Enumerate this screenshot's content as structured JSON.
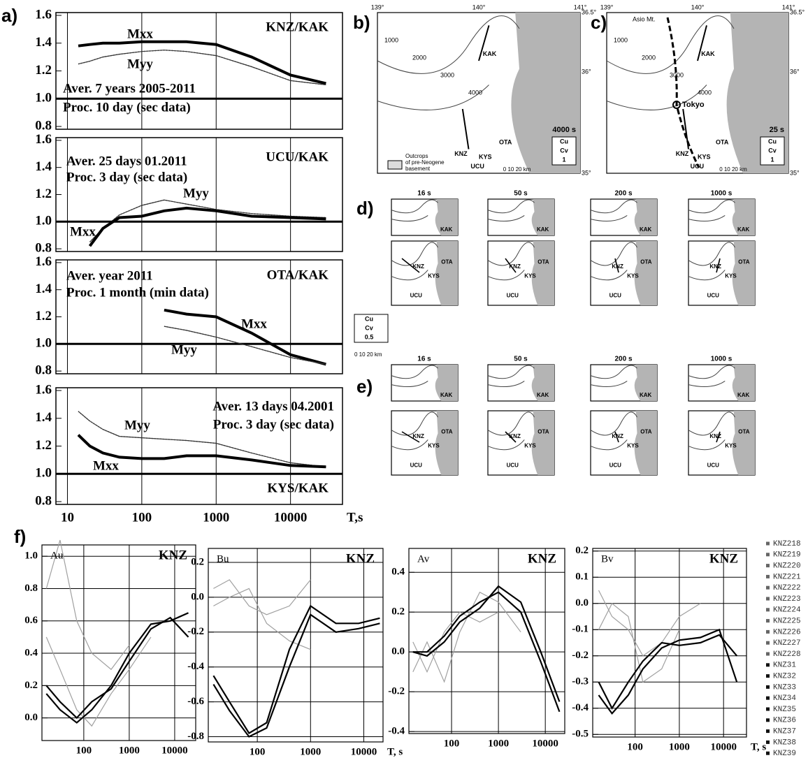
{
  "panel_labels": [
    "a)",
    "b)",
    "c)",
    "d)",
    "e)",
    "f)"
  ],
  "chart_data": [
    {
      "type": "line",
      "title": "KNZ/KAK",
      "annotations": [
        "Aver. 7 years 2005-2011",
        "Proc. 10 day (sec data)"
      ],
      "x": [
        14,
        20,
        30,
        50,
        100,
        200,
        400,
        1000,
        3000,
        10000,
        30000
      ],
      "xlim": [
        7,
        50000
      ],
      "log_x": true,
      "xticks": [
        10,
        100,
        1000,
        10000
      ],
      "xtick_labels": false,
      "ylim": [
        0.78,
        1.62
      ],
      "yticks": [
        1.6,
        1.4,
        1.2,
        {
          "value": 1,
          "label": "1.0"
        },
        0.8
      ],
      "hline": 1,
      "grid": "x",
      "series": [
        {
          "name": "Mxx",
          "color": "#000000",
          "values": [
            1.38,
            1.39,
            1.4,
            1.4,
            1.41,
            1.41,
            1.41,
            1.39,
            1.3,
            1.17,
            1.11
          ]
        },
        {
          "name": "Myy",
          "color": "#333333",
          "values": [
            1.25,
            1.27,
            1.3,
            1.32,
            1.34,
            1.35,
            1.34,
            1.31,
            1.23,
            1.13,
            1.1
          ]
        }
      ]
    },
    {
      "type": "line",
      "title": "UCU/KAK",
      "annotations": [
        "Aver. 25 days 01.2011",
        "Proc. 3 day (sec data)"
      ],
      "x": [
        14,
        20,
        30,
        50,
        100,
        200,
        400,
        1000,
        3000,
        10000,
        30000
      ],
      "xlim": [
        7,
        50000
      ],
      "log_x": true,
      "xticks": [
        10,
        100,
        1000,
        10000
      ],
      "xtick_labels": false,
      "ylim": [
        0.78,
        1.62
      ],
      "yticks": [
        1.6,
        1.4,
        1.2,
        {
          "value": 1,
          "label": "1.0"
        },
        0.8
      ],
      "hline": 1,
      "grid": "x",
      "series": [
        {
          "name": "Myy",
          "color": "#333333",
          "values": [
            null,
            0.85,
            0.95,
            1.05,
            1.12,
            1.16,
            1.13,
            1.09,
            1.06,
            1.04,
            1.03
          ]
        },
        {
          "name": "Mxx",
          "color": "#000000",
          "values": [
            null,
            0.82,
            0.95,
            1.03,
            1.04,
            1.08,
            1.1,
            1.08,
            1.04,
            1.03,
            1.02
          ]
        }
      ]
    },
    {
      "type": "line",
      "title": "OTA/KAK",
      "annotations": [
        "Aver. year 2011",
        "Proc. 1 month (min data)"
      ],
      "x": [
        14,
        20,
        30,
        50,
        100,
        200,
        400,
        1000,
        3000,
        10000,
        30000
      ],
      "xlim": [
        7,
        50000
      ],
      "log_x": true,
      "xticks": [
        10,
        100,
        1000,
        10000
      ],
      "xtick_labels": false,
      "ylim": [
        0.78,
        1.62
      ],
      "yticks": [
        1.6,
        1.4,
        1.2,
        {
          "value": 1,
          "label": "1.0"
        },
        0.8
      ],
      "hline": 1,
      "grid": "x",
      "series": [
        {
          "name": "Mxx",
          "color": "#000000",
          "values": [
            null,
            null,
            null,
            null,
            null,
            1.25,
            1.22,
            1.2,
            1.08,
            0.92,
            0.85
          ]
        },
        {
          "name": "Myy",
          "color": "#333333",
          "values": [
            null,
            null,
            null,
            null,
            null,
            1.13,
            1.1,
            1.05,
            0.98,
            0.9,
            0.85
          ]
        }
      ]
    },
    {
      "type": "line",
      "title": "KYS/KAK",
      "annotations": [
        "Aver. 13 days 04.2001",
        "Proc. 3 day (sec data)"
      ],
      "xlabel": "T,s",
      "x": [
        14,
        20,
        30,
        50,
        100,
        200,
        400,
        1000,
        3000,
        10000,
        30000
      ],
      "xlim": [
        7,
        50000
      ],
      "log_x": true,
      "xticks": [
        10,
        100,
        1000,
        10000
      ],
      "xtick_labels": true,
      "ylim": [
        0.78,
        1.62
      ],
      "yticks": [
        1.6,
        1.4,
        1.2,
        {
          "value": 1,
          "label": "1.0"
        },
        0.8
      ],
      "hline": 1,
      "grid": "x",
      "series": [
        {
          "name": "Myy",
          "color": "#333333",
          "values": [
            1.45,
            1.38,
            1.32,
            1.27,
            1.26,
            1.25,
            1.24,
            1.22,
            1.15,
            1.08,
            1.05
          ]
        },
        {
          "name": "Mxx",
          "color": "#000000",
          "values": [
            1.28,
            1.2,
            1.15,
            1.12,
            1.11,
            1.11,
            1.13,
            1.13,
            1.1,
            1.06,
            1.05
          ]
        }
      ]
    },
    {
      "type": "line",
      "title": "Au",
      "station": "KNZ",
      "x": [
        15,
        30,
        70,
        150,
        400,
        1000,
        3000,
        8000,
        20000
      ],
      "xlim": [
        12,
        29000
      ],
      "log_x": true,
      "xticks": [
        100,
        1000,
        10000
      ],
      "xtick_labels": true,
      "ylim": [
        -0.14,
        1.07
      ],
      "yticks": [
        {
          "value": 0,
          "label": "0.0"
        },
        0.2,
        0.4,
        0.6,
        0.8,
        {
          "value": 1,
          "label": "1.0"
        }
      ],
      "grid": "both",
      "series": [
        {
          "color": "#a0a0a0",
          "values": [
            0.8,
            1.1,
            0.6,
            0.4,
            0.3,
            0.45,
            null,
            null,
            null
          ]
        },
        {
          "color": "#a0a0a0",
          "values": [
            0.5,
            0.3,
            0.05,
            -0.05,
            0.15,
            0.3,
            0.5,
            null,
            null
          ]
        },
        {
          "color": "#000000",
          "values": [
            0.2,
            0.1,
            0.0,
            0.1,
            0.18,
            0.35,
            0.55,
            0.62,
            0.5
          ]
        },
        {
          "color": "#000000",
          "values": [
            0.15,
            0.05,
            -0.03,
            0.05,
            0.2,
            0.4,
            0.58,
            0.6,
            0.65
          ]
        }
      ]
    },
    {
      "type": "line",
      "title": "Bu",
      "station": "KNZ",
      "xlabel": "T, s",
      "x": [
        15,
        30,
        70,
        150,
        400,
        1000,
        3000,
        8000,
        20000
      ],
      "xlim": [
        12,
        23000
      ],
      "log_x": true,
      "xticks": [
        100,
        1000,
        10000
      ],
      "xtick_labels": true,
      "ylim": [
        -0.83,
        0.28
      ],
      "yticks": [
        0.2,
        {
          "value": 0,
          "label": "0.0"
        },
        -0.2,
        -0.4,
        -0.6,
        -0.8
      ],
      "grid": "both",
      "series": [
        {
          "color": "#a0a0a0",
          "values": [
            0.05,
            0.1,
            -0.05,
            -0.1,
            -0.05,
            0.1,
            null,
            null,
            null
          ]
        },
        {
          "color": "#a0a0a0",
          "values": [
            -0.05,
            0.0,
            0.05,
            -0.15,
            -0.25,
            -0.3,
            null,
            null,
            null
          ]
        },
        {
          "color": "#000000",
          "values": [
            -0.45,
            -0.6,
            -0.78,
            -0.72,
            -0.3,
            -0.05,
            -0.15,
            -0.15,
            -0.12
          ]
        },
        {
          "color": "#000000",
          "values": [
            -0.5,
            -0.65,
            -0.8,
            -0.75,
            -0.4,
            -0.1,
            -0.2,
            -0.18,
            -0.15
          ]
        }
      ]
    },
    {
      "type": "line",
      "title": "Av",
      "station": "KNZ",
      "x": [
        15,
        30,
        70,
        150,
        400,
        1000,
        3000,
        8000,
        20000
      ],
      "xlim": [
        12.3,
        26000
      ],
      "log_x": true,
      "xticks": [
        100,
        1000,
        10000
      ],
      "xtick_labels": true,
      "ylim": [
        -0.41,
        0.52
      ],
      "yticks": [
        0.4,
        0.2,
        {
          "value": 0,
          "label": "0.0"
        },
        -0.2,
        -0.4
      ],
      "grid": "both",
      "series": [
        {
          "color": "#a0a0a0",
          "values": [
            -0.1,
            0.05,
            -0.15,
            0.1,
            0.3,
            0.25,
            0.1,
            null,
            null
          ]
        },
        {
          "color": "#a0a0a0",
          "values": [
            0.05,
            -0.1,
            0.1,
            0.2,
            0.15,
            0.2,
            null,
            null,
            null
          ]
        },
        {
          "color": "#000000",
          "values": [
            0.0,
            -0.02,
            0.05,
            0.15,
            0.22,
            0.33,
            0.25,
            0.0,
            -0.25
          ]
        },
        {
          "color": "#000000",
          "values": [
            0.0,
            0.0,
            0.08,
            0.18,
            0.25,
            0.3,
            0.2,
            -0.05,
            -0.3
          ]
        }
      ]
    },
    {
      "type": "line",
      "title": "Bv",
      "station": "KNZ",
      "xlabel": "T, s",
      "x": [
        15,
        30,
        70,
        150,
        400,
        1000,
        3000,
        8000,
        20000
      ],
      "xlim": [
        11,
        33000
      ],
      "log_x": true,
      "xticks": [
        100,
        1000,
        10000
      ],
      "xtick_labels": true,
      "ylim": [
        -0.51,
        0.21
      ],
      "yticks": [
        0.2,
        0.1,
        {
          "value": 0,
          "label": "0.0"
        },
        -0.1,
        -0.2,
        -0.3,
        -0.4,
        -0.5
      ],
      "grid": "both",
      "series": [
        {
          "color": "#a0a0a0",
          "values": [
            0.05,
            -0.05,
            -0.1,
            -0.2,
            -0.15,
            -0.05,
            0.0,
            null,
            null
          ]
        },
        {
          "color": "#a0a0a0",
          "values": [
            -0.1,
            0.0,
            -0.05,
            -0.3,
            -0.25,
            -0.1,
            null,
            null,
            null
          ]
        },
        {
          "color": "#000000",
          "values": [
            -0.35,
            -0.42,
            -0.35,
            -0.25,
            -0.17,
            -0.14,
            -0.13,
            -0.1,
            -0.3
          ]
        },
        {
          "color": "#000000",
          "values": [
            -0.3,
            -0.4,
            -0.3,
            -0.22,
            -0.15,
            -0.16,
            -0.15,
            -0.12,
            -0.2
          ]
        }
      ]
    }
  ],
  "f_legend": [
    "KNZ218",
    "KNZ219",
    "KNZ220",
    "KNZ221",
    "KNZ222",
    "KNZ223",
    "KNZ224",
    "KNZ225",
    "KNZ226",
    "KNZ227",
    "KNZ228",
    "KNZ31",
    "KNZ32",
    "KNZ33",
    "KNZ34",
    "KNZ35",
    "KNZ36",
    "KNZ37",
    "KNZ38",
    "KNZ39"
  ],
  "maps": {
    "lon": [
      "139°",
      "140°",
      "141°"
    ],
    "lat": [
      "36.5°",
      "36°",
      "35°"
    ],
    "stations": [
      "KAK",
      "KNZ",
      "OTA",
      "KYS",
      "UCU"
    ],
    "contours": [
      "1000",
      "2000",
      "3000",
      "4000"
    ],
    "b": {
      "period": "4000 s",
      "arrow_legend": [
        "Cu",
        "Cv",
        "1"
      ],
      "note": [
        "Outcrops",
        "of pre-Neogene",
        "basement"
      ],
      "scale": "0 10 20 km"
    },
    "c": {
      "period": "25 s",
      "arrow_legend": [
        "Cu",
        "Cv",
        "1"
      ],
      "places": [
        "Asio Mt.",
        "Tokyo"
      ],
      "scale": "0 10 20 km"
    },
    "periods": [
      "16 s",
      "50 s",
      "200 s",
      "1000 s"
    ],
    "arrow_legend": [
      "Cu",
      "Cv",
      "0.5"
    ],
    "scale": "0 10 20 km"
  }
}
